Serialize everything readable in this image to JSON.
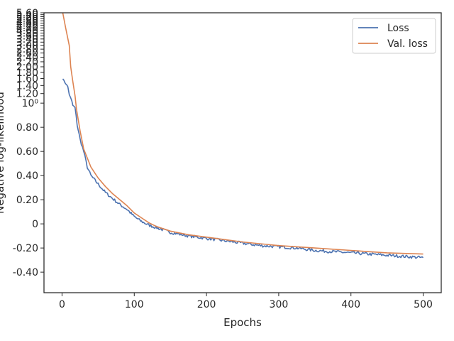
{
  "chart_data": {
    "type": "line",
    "xlabel": "Epochs",
    "ylabel": "Negative log-likelihood",
    "y_linear_threshold": 1.0,
    "xlim": [
      -25,
      525
    ],
    "ylim": [
      -0.57,
      5.6
    ],
    "x_ticks": [
      0,
      100,
      200,
      300,
      400,
      500
    ],
    "x_tick_labels": [
      "0",
      "100",
      "200",
      "300",
      "400",
      "500"
    ],
    "y_ticks_linear": [
      -0.4,
      -0.2,
      0.0,
      0.2,
      0.4,
      0.6,
      0.8
    ],
    "y_tick_labels_linear": [
      "-0.40",
      "-0.20",
      "0",
      "0.20",
      "0.40",
      "0.60",
      "0.80"
    ],
    "y_tick_one": "10⁰",
    "y_ticks_upper": [
      1.2,
      1.4,
      1.6,
      1.8,
      2.0,
      2.2,
      2.4,
      2.6,
      2.8,
      3.0,
      3.2,
      3.4,
      3.6,
      3.8,
      4.0,
      4.2,
      4.4,
      4.6,
      4.8,
      5.0,
      5.2,
      5.4,
      5.6
    ],
    "y_tick_labels_upper": [
      "1.20",
      "1.40",
      "1.60",
      "1.80",
      "2.00",
      "2.20",
      "2.40",
      "2.60",
      "2.80",
      "3.00",
      "3.20",
      "3.40",
      "3.60",
      "3.80",
      "4.00",
      "4.20",
      "4.40",
      "4.60",
      "4.80",
      "5.00",
      "5.20",
      "5.40",
      "5.60"
    ],
    "grid": false,
    "legend_position": "top-right",
    "series": [
      {
        "name": "Loss",
        "color": "#4c72b0",
        "x": [
          1,
          4,
          8,
          10,
          12,
          15,
          18,
          21,
          25,
          30,
          35,
          40,
          50,
          60,
          70,
          80,
          90,
          100,
          110,
          120,
          130,
          140,
          150,
          175,
          200,
          225,
          250,
          275,
          300,
          325,
          350,
          375,
          400,
          425,
          450,
          475,
          500
        ],
        "y": [
          1.6,
          1.48,
          1.37,
          1.18,
          1.1,
          0.98,
          0.96,
          0.82,
          0.7,
          0.6,
          0.47,
          0.4,
          0.33,
          0.26,
          0.21,
          0.16,
          0.12,
          0.06,
          0.02,
          -0.01,
          -0.03,
          -0.05,
          -0.07,
          -0.1,
          -0.12,
          -0.14,
          -0.16,
          -0.18,
          -0.19,
          -0.2,
          -0.22,
          -0.23,
          -0.24,
          -0.25,
          -0.26,
          -0.27,
          -0.28
        ],
        "noise": 0.012
      },
      {
        "name": "Val. loss",
        "color": "#dd8452",
        "x": [
          1,
          5,
          10,
          12,
          15,
          18,
          20,
          25,
          30,
          40,
          50,
          60,
          70,
          80,
          90,
          100,
          110,
          120,
          130,
          150,
          175,
          200,
          250,
          300,
          350,
          400,
          450,
          500
        ],
        "y": [
          5.6,
          4.2,
          3.0,
          2.0,
          1.5,
          1.15,
          0.95,
          0.77,
          0.62,
          0.47,
          0.38,
          0.31,
          0.25,
          0.2,
          0.15,
          0.09,
          0.05,
          0.01,
          -0.02,
          -0.06,
          -0.09,
          -0.11,
          -0.15,
          -0.18,
          -0.2,
          -0.22,
          -0.24,
          -0.25
        ]
      }
    ]
  }
}
